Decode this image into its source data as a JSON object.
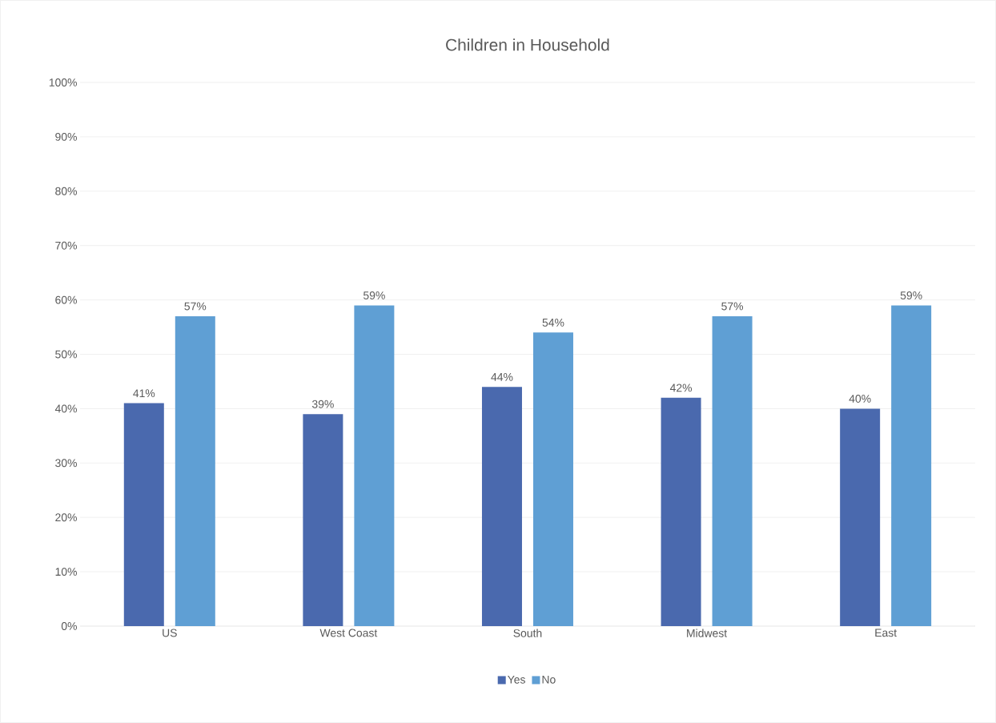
{
  "chart_data": {
    "type": "bar",
    "title": "Children in Household",
    "categories": [
      "US",
      "West Coast",
      "South",
      "Midwest",
      "East"
    ],
    "series": [
      {
        "name": "Yes",
        "color": "#4a69ae",
        "values": [
          41,
          39,
          44,
          42,
          40
        ],
        "value_labels": [
          "41%",
          "39%",
          "44%",
          "42%",
          "40%"
        ]
      },
      {
        "name": "No",
        "color": "#5f9fd4",
        "values": [
          57,
          59,
          54,
          57,
          59
        ],
        "value_labels": [
          "57%",
          "59%",
          "54%",
          "57%",
          "59%"
        ]
      }
    ],
    "ylim": [
      0,
      100
    ],
    "yticks": [
      {
        "value": 0,
        "label": "0%"
      },
      {
        "value": 10,
        "label": "10%"
      },
      {
        "value": 20,
        "label": "20%"
      },
      {
        "value": 30,
        "label": "30%"
      },
      {
        "value": 40,
        "label": "40%"
      },
      {
        "value": 50,
        "label": "50%"
      },
      {
        "value": 60,
        "label": "60%"
      },
      {
        "value": 70,
        "label": "70%"
      },
      {
        "value": 80,
        "label": "80%"
      },
      {
        "value": 90,
        "label": "90%"
      },
      {
        "value": 100,
        "label": "100%"
      }
    ],
    "grid": "y",
    "legend": "bottom"
  }
}
